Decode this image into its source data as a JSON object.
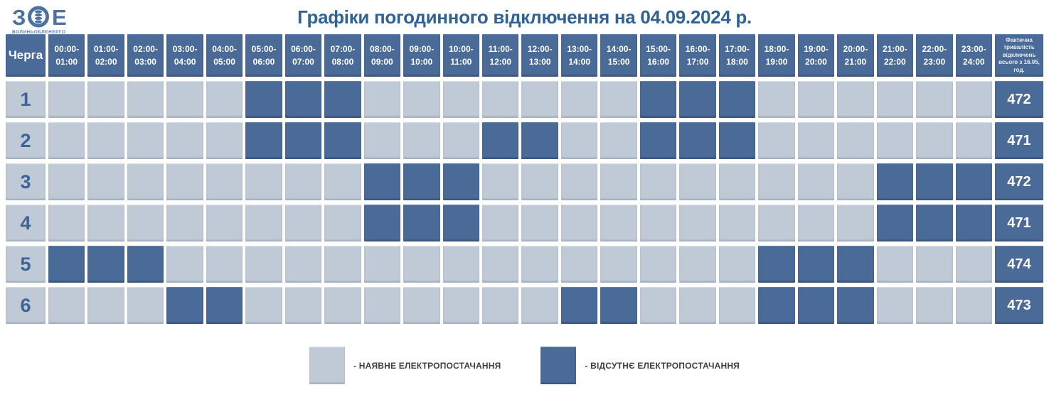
{
  "logo": {
    "mark_left": "З",
    "mark_right": "Е",
    "caption": "ВОЛИНЬОБЛЕНЕРГО"
  },
  "title": "Графіки погодинного відключення на 04.09.2024 р.",
  "table": {
    "corner_label": "Черга",
    "summary_header": "Фактична тривалість відключень всього з 16.05, год.",
    "hour_columns": [
      {
        "line1": "00:00-",
        "line2": "01:00"
      },
      {
        "line1": "01:00-",
        "line2": "02:00"
      },
      {
        "line1": "02:00-",
        "line2": "03:00"
      },
      {
        "line1": "03:00-",
        "line2": "04:00"
      },
      {
        "line1": "04:00-",
        "line2": "05:00"
      },
      {
        "line1": "05:00-",
        "line2": "06:00"
      },
      {
        "line1": "06:00-",
        "line2": "07:00"
      },
      {
        "line1": "07:00-",
        "line2": "08:00"
      },
      {
        "line1": "08:00-",
        "line2": "09:00"
      },
      {
        "line1": "09:00-",
        "line2": "10:00"
      },
      {
        "line1": "10:00-",
        "line2": "11:00"
      },
      {
        "line1": "11:00-",
        "line2": "12:00"
      },
      {
        "line1": "12:00-",
        "line2": "13:00"
      },
      {
        "line1": "13:00-",
        "line2": "14:00"
      },
      {
        "line1": "14:00-",
        "line2": "15:00"
      },
      {
        "line1": "15:00-",
        "line2": "16:00"
      },
      {
        "line1": "16:00-",
        "line2": "17:00"
      },
      {
        "line1": "17:00-",
        "line2": "18:00"
      },
      {
        "line1": "18:00-",
        "line2": "19:00"
      },
      {
        "line1": "19:00-",
        "line2": "20:00"
      },
      {
        "line1": "20:00-",
        "line2": "21:00"
      },
      {
        "line1": "21:00-",
        "line2": "22:00"
      },
      {
        "line1": "22:00-",
        "line2": "23:00"
      },
      {
        "line1": "23:00-",
        "line2": "24:00"
      }
    ],
    "rows": [
      {
        "queue": "1",
        "off_hours": [
          5,
          6,
          7,
          15,
          16,
          17
        ],
        "total": "472"
      },
      {
        "queue": "2",
        "off_hours": [
          5,
          6,
          7,
          11,
          12,
          15,
          16,
          17
        ],
        "total": "471"
      },
      {
        "queue": "3",
        "off_hours": [
          8,
          9,
          10,
          21,
          22,
          23
        ],
        "total": "472"
      },
      {
        "queue": "4",
        "off_hours": [
          8,
          9,
          10,
          21,
          22,
          23
        ],
        "total": "471"
      },
      {
        "queue": "5",
        "off_hours": [
          0,
          1,
          2,
          18,
          19,
          20
        ],
        "total": "474"
      },
      {
        "queue": "6",
        "off_hours": [
          3,
          4,
          13,
          14,
          18,
          19,
          20
        ],
        "total": "473"
      }
    ]
  },
  "legend": [
    {
      "label": "- НАЯВНЕ ЕЛЕКТРОПОСТАЧАННЯ",
      "state": "on"
    },
    {
      "label": "- ВІДСУТНЄ ЕЛЕКТРОПОСТАЧАННЯ",
      "state": "off"
    }
  ],
  "colors": {
    "off_cell": "#4a6b98",
    "on_cell": "#bfcad6",
    "title_text": "#2f6396",
    "queue_label_text": "#3d6397",
    "logo_blue": "#4c72a4"
  },
  "chart_data": {
    "type": "heatmap",
    "title": "Графіки погодинного відключення на 04.09.2024 р.",
    "x_labels": [
      "00:00-01:00",
      "01:00-02:00",
      "02:00-03:00",
      "03:00-04:00",
      "04:00-05:00",
      "05:00-06:00",
      "06:00-07:00",
      "07:00-08:00",
      "08:00-09:00",
      "09:00-10:00",
      "10:00-11:00",
      "11:00-12:00",
      "12:00-13:00",
      "13:00-14:00",
      "14:00-15:00",
      "15:00-16:00",
      "16:00-17:00",
      "17:00-18:00",
      "18:00-19:00",
      "19:00-20:00",
      "20:00-21:00",
      "21:00-22:00",
      "22:00-23:00",
      "23:00-24:00"
    ],
    "y_labels": [
      "1",
      "2",
      "3",
      "4",
      "5",
      "6"
    ],
    "value_legend": {
      "0": "НАЯВНЕ ЕЛЕКТРОПОСТАЧАННЯ",
      "1": "ВІДСУТНЄ ЕЛЕКТРОПОСТАЧАННЯ"
    },
    "matrix": [
      [
        0,
        0,
        0,
        0,
        0,
        1,
        1,
        1,
        0,
        0,
        0,
        0,
        0,
        0,
        0,
        1,
        1,
        1,
        0,
        0,
        0,
        0,
        0,
        0
      ],
      [
        0,
        0,
        0,
        0,
        0,
        1,
        1,
        1,
        0,
        0,
        0,
        1,
        1,
        0,
        0,
        1,
        1,
        1,
        0,
        0,
        0,
        0,
        0,
        0
      ],
      [
        0,
        0,
        0,
        0,
        0,
        0,
        0,
        0,
        1,
        1,
        1,
        0,
        0,
        0,
        0,
        0,
        0,
        0,
        0,
        0,
        0,
        1,
        1,
        1
      ],
      [
        0,
        0,
        0,
        0,
        0,
        0,
        0,
        0,
        1,
        1,
        1,
        0,
        0,
        0,
        0,
        0,
        0,
        0,
        0,
        0,
        0,
        1,
        1,
        1
      ],
      [
        1,
        1,
        1,
        0,
        0,
        0,
        0,
        0,
        0,
        0,
        0,
        0,
        0,
        0,
        0,
        0,
        0,
        0,
        1,
        1,
        1,
        0,
        0,
        0
      ],
      [
        0,
        0,
        0,
        1,
        1,
        0,
        0,
        0,
        0,
        0,
        0,
        0,
        0,
        1,
        1,
        0,
        0,
        0,
        1,
        1,
        1,
        0,
        0,
        0
      ]
    ],
    "totals_label": "Фактична тривалість відключень всього з 16.05, год.",
    "totals": [
      472,
      471,
      472,
      471,
      474,
      473
    ]
  }
}
